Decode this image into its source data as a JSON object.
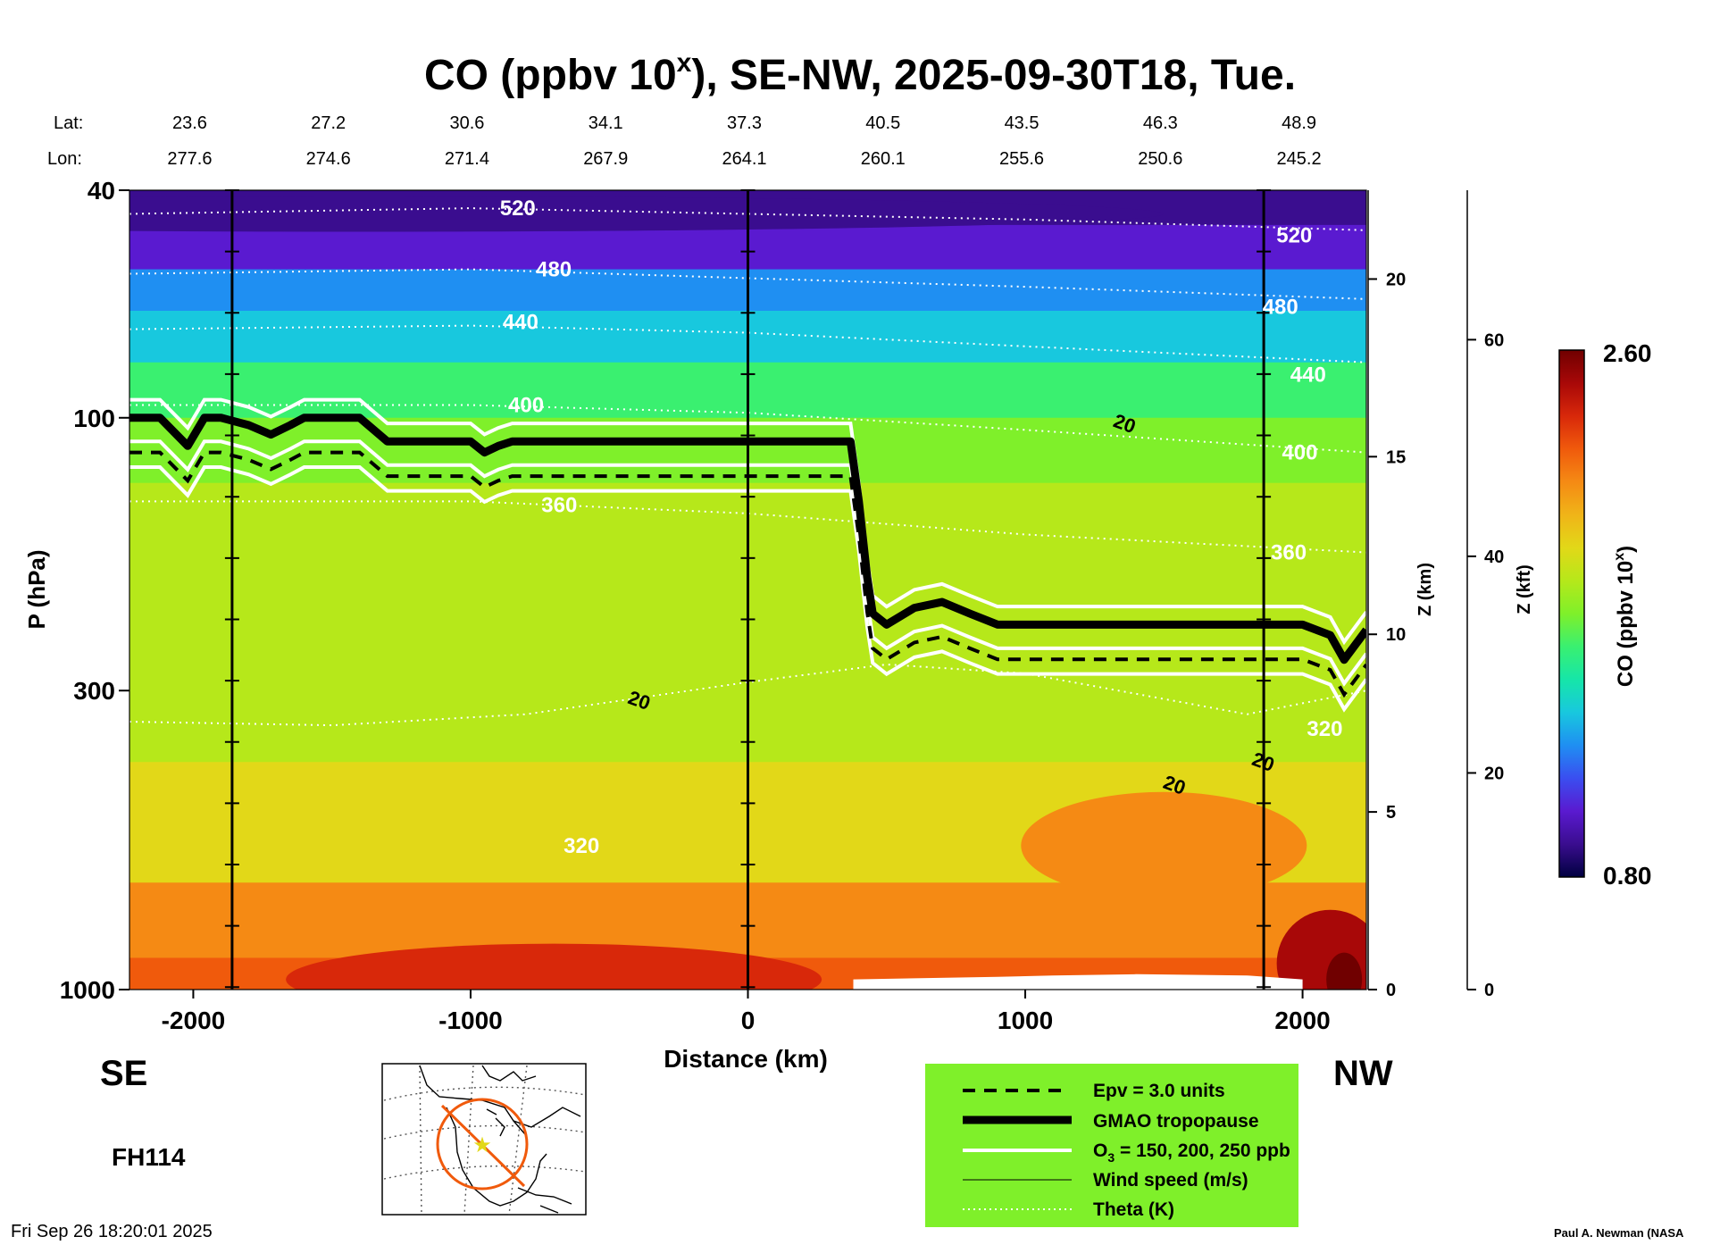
{
  "chart_data": {
    "type": "heatmap",
    "title_main": "CO (ppbv 10",
    "title_sup": "x",
    "title_rest": "), SE-NW, 2025-09-30T18, Tue.",
    "lat_label": "Lat:",
    "lon_label": "Lon:",
    "lats": [
      "23.6",
      "27.2",
      "30.6",
      "34.1",
      "37.3",
      "40.5",
      "43.5",
      "46.3",
      "48.9"
    ],
    "lons": [
      "277.6",
      "274.6",
      "271.4",
      "267.9",
      "264.1",
      "260.1",
      "255.6",
      "250.6",
      "245.2"
    ],
    "lat_lon_x": [
      -2000,
      -1500,
      -1000,
      -500,
      0,
      500,
      1000,
      1500,
      2000
    ],
    "xlabel": "Distance (km)",
    "ylabel": "P (hPa)",
    "xlim": [
      -2230,
      2230
    ],
    "ylim": [
      1000,
      40
    ],
    "yscale": "log",
    "x_ticks": [
      -2000,
      -1000,
      0,
      1000,
      2000
    ],
    "y_ticks": [
      40,
      100,
      300,
      1000
    ],
    "z_km_label": "Z (km)",
    "z_km_ticks": [
      0,
      5,
      10,
      15,
      20
    ],
    "z_kft_label": "Z (kft)",
    "z_kft_ticks": [
      0,
      20,
      40,
      60
    ],
    "vertical_lines_x": [
      -1860,
      0,
      1860
    ],
    "colorbar": {
      "label_main": "CO (ppbv 10",
      "label_sup": "x",
      "label_rest": ")",
      "min": 0.8,
      "max": 2.6,
      "min_label": "0.80",
      "max_label": "2.60",
      "colors": [
        "#000040",
        "#3a0d8f",
        "#5a1ad0",
        "#3a4ef0",
        "#1f8ff2",
        "#18c8de",
        "#16e6a8",
        "#3af070",
        "#7ff02a",
        "#b6e81a",
        "#e2d818",
        "#f0b418",
        "#f58a14",
        "#f05a0c",
        "#d8280a",
        "#a80808",
        "#700000"
      ]
    },
    "field_bands": [
      {
        "p_top": 40,
        "p_bot": 46,
        "value": 0.95
      },
      {
        "p_top": 46,
        "p_bot": 55,
        "value": 1.05
      },
      {
        "p_top": 55,
        "p_bot": 65,
        "value": 1.2
      },
      {
        "p_top": 65,
        "p_bot": 80,
        "value": 1.4
      },
      {
        "p_top": 80,
        "p_bot": 100,
        "value": 1.55
      },
      {
        "p_top": 100,
        "p_bot": 130,
        "value": 1.7
      },
      {
        "p_top": 130,
        "p_bot": 400,
        "value": 1.85
      },
      {
        "p_top": 400,
        "p_bot": 650,
        "value": 1.98
      },
      {
        "p_top": 650,
        "p_bot": 880,
        "value": 2.1
      },
      {
        "p_top": 880,
        "p_bot": 1000,
        "value": 2.28
      }
    ],
    "theta_contours": [
      {
        "label": "520",
        "label_x": -830,
        "label_p": 43,
        "pts": [
          [
            -2230,
            44
          ],
          [
            -1000,
            43
          ],
          [
            0,
            44
          ],
          [
            1000,
            45
          ],
          [
            2230,
            47
          ]
        ]
      },
      {
        "label": "520",
        "label_x": 1970,
        "label_p": 48
      },
      {
        "label": "480",
        "label_x": -700,
        "label_p": 55,
        "pts": [
          [
            -2230,
            56
          ],
          [
            -1000,
            55
          ],
          [
            0,
            57
          ],
          [
            1000,
            59
          ],
          [
            2230,
            62
          ]
        ]
      },
      {
        "label": "480",
        "label_x": 1920,
        "label_p": 64
      },
      {
        "label": "440",
        "label_x": -820,
        "label_p": 68,
        "pts": [
          [
            -2230,
            70
          ],
          [
            -1000,
            69
          ],
          [
            0,
            71
          ],
          [
            1000,
            75
          ],
          [
            2230,
            80
          ]
        ]
      },
      {
        "label": "440",
        "label_x": 2020,
        "label_p": 84
      },
      {
        "label": "400",
        "label_x": -800,
        "label_p": 95,
        "pts": [
          [
            -2230,
            95
          ],
          [
            -1000,
            95
          ],
          [
            0,
            98
          ],
          [
            1000,
            105
          ],
          [
            2230,
            115
          ]
        ]
      },
      {
        "label": "400",
        "label_x": 1990,
        "label_p": 115
      },
      {
        "label": "360",
        "label_x": -680,
        "label_p": 142,
        "pts": [
          [
            -2230,
            140
          ],
          [
            -1000,
            140
          ],
          [
            0,
            147
          ],
          [
            1000,
            160
          ],
          [
            2230,
            172
          ]
        ]
      },
      {
        "label": "360",
        "label_x": 1950,
        "label_p": 172
      },
      {
        "label": "320",
        "label_x": -600,
        "label_p": 560,
        "pts": [
          [
            -2230,
            340
          ],
          [
            -1500,
            345
          ],
          [
            -800,
            330
          ],
          [
            0,
            290
          ],
          [
            500,
            270
          ],
          [
            1000,
            280
          ],
          [
            1800,
            330
          ],
          [
            2230,
            300
          ]
        ]
      },
      {
        "label": "320",
        "label_x": 2080,
        "label_p": 350
      }
    ],
    "tropopause_x": [
      -2230,
      -2120,
      -2020,
      -1960,
      -1900,
      -1800,
      -1720,
      -1650,
      -1600,
      -1500,
      -1400,
      -1300,
      -1200,
      -1100,
      -1000,
      -950,
      -900,
      -850,
      -800,
      -700,
      -500,
      -300,
      0,
      200,
      370,
      400,
      430,
      450,
      500,
      600,
      700,
      800,
      900,
      1000,
      1200,
      1500,
      1800,
      2000,
      2100,
      2150,
      2230
    ],
    "tropopause_p": [
      100,
      100,
      112,
      100,
      100,
      103,
      107,
      103,
      100,
      100,
      100,
      110,
      110,
      110,
      110,
      115,
      112,
      110,
      110,
      110,
      110,
      110,
      110,
      110,
      110,
      140,
      190,
      220,
      230,
      215,
      210,
      220,
      230,
      230,
      230,
      230,
      230,
      230,
      240,
      265,
      235
    ],
    "wind_label": "20",
    "wind_label_positions": [
      [
        -400,
        320
      ],
      [
        1350,
        105
      ],
      [
        1530,
        450
      ],
      [
        1850,
        410
      ]
    ],
    "legend": {
      "epv": "Epv = 3.0 units",
      "tropopause": "GMAO tropopause",
      "o3_main": "O",
      "o3_sub": "3",
      "o3_rest": " = 150, 200, 250 ppb",
      "wind": "Wind speed (m/s)",
      "theta": "Theta (K)"
    },
    "se_label": "SE",
    "nw_label": "NW",
    "fh_label": "FH114",
    "timestamp": "Fri Sep 26 18:20:01 2025",
    "credit": "Paul A. Newman (NASA"
  },
  "colors": {
    "legend_bg": "#7ff02a",
    "map_track": "#f05a0c",
    "map_star": "#e2d818",
    "terrain": "#ffffff"
  }
}
